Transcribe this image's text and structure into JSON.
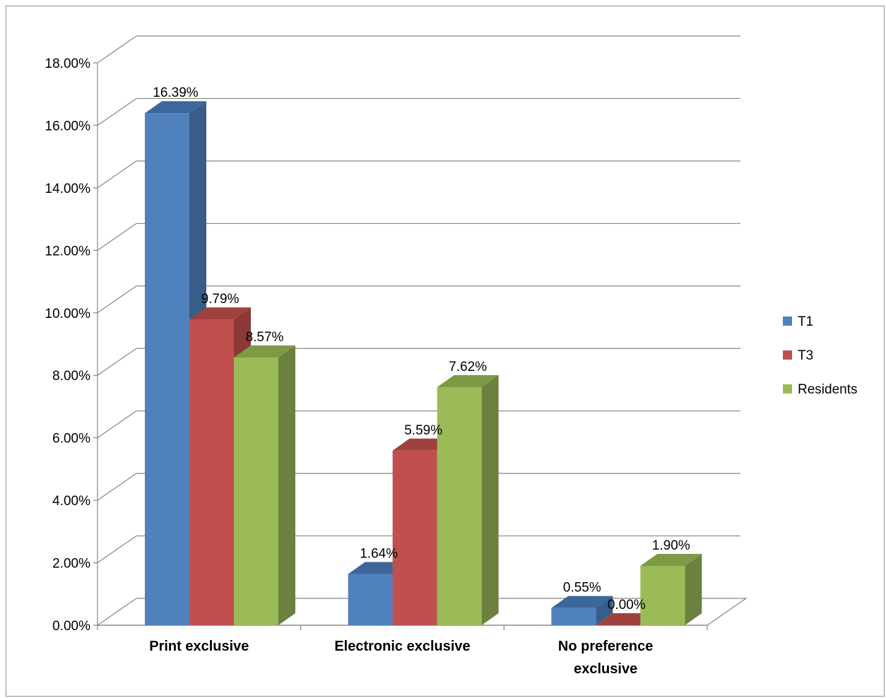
{
  "chart_data": {
    "type": "bar",
    "title": "",
    "xlabel": "",
    "ylabel": "",
    "categories": [
      "Print exclusive",
      "Electronic exclusive",
      "No preference exclusive"
    ],
    "category_lines": [
      [
        "Print exclusive"
      ],
      [
        "Electronic exclusive"
      ],
      [
        "No preference",
        "exclusive"
      ]
    ],
    "series": [
      {
        "name": "T1",
        "values": [
          16.39,
          1.64,
          0.55
        ],
        "labels": [
          "16.39%",
          "1.64%",
          "0.55%"
        ],
        "color": "#4f81bd",
        "side": "#385d8a",
        "top": "#3d679b"
      },
      {
        "name": "T3",
        "values": [
          9.79,
          5.59,
          0.0
        ],
        "labels": [
          "9.79%",
          "5.59%",
          "0.00%"
        ],
        "color": "#c0504d",
        "side": "#8c3836",
        "top": "#a0413e"
      },
      {
        "name": "Residents",
        "values": [
          8.57,
          7.62,
          1.9
        ],
        "labels": [
          "8.57%",
          "7.62%",
          "1.90%"
        ],
        "color": "#9bbb59",
        "side": "#6c8040",
        "top": "#7d9a44"
      }
    ],
    "ylim": [
      0,
      18
    ],
    "yticks": [
      "0.00%",
      "2.00%",
      "4.00%",
      "6.00%",
      "8.00%",
      "10.00%",
      "12.00%",
      "14.00%",
      "16.00%",
      "18.00%"
    ],
    "grid": true,
    "legend_position": "right"
  }
}
